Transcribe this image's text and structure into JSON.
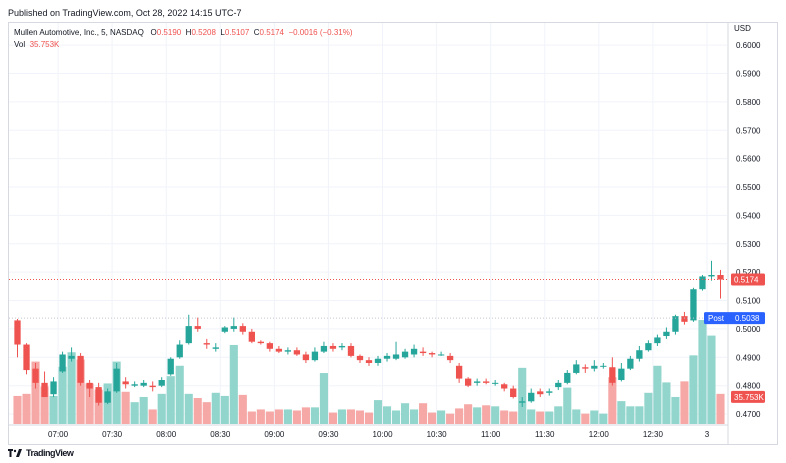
{
  "header": {
    "published": "Published on TradingView.com, Oct 28, 2022 14:15 UTC-7"
  },
  "legend": {
    "symbol": "Mullen Automotive, Inc., 5, NASDAQ",
    "open_key": "O",
    "open": "0.5190",
    "high_key": "H",
    "high": "0.5208",
    "low_key": "L",
    "low": "0.5107",
    "close_key": "C",
    "close": "0.5174",
    "change": "−0.0016 (−0.31%)",
    "vol_key": "Vol",
    "vol": "35.753K"
  },
  "footer": {
    "brand": "TradingView",
    "logo": "tradingview-logo-icon"
  },
  "colors": {
    "up": "#26a69a",
    "down": "#ef5350",
    "up_vol": "#91d5cc",
    "down_vol": "#f5a8a6",
    "post": "#2962ff",
    "grid": "#f0f3fa"
  },
  "chart_data": {
    "type": "candlestick",
    "currency": "USD",
    "y_ticks": [
      "0.6000",
      "0.5900",
      "0.5800",
      "0.5700",
      "0.5600",
      "0.5500",
      "0.5400",
      "0.5300",
      "0.5200",
      "0.5100",
      "0.5000",
      "0.4900",
      "0.4800",
      "0.4700"
    ],
    "ylim": [
      0.4665,
      0.6078
    ],
    "x_ticks": [
      "07:00",
      "07:30",
      "08:00",
      "08:30",
      "09:00",
      "09:30",
      "10:00",
      "10:30",
      "11:00",
      "11:30",
      "12:00",
      "12:30",
      "3"
    ],
    "x_tick_index": [
      4.5,
      10.5,
      16.5,
      22.5,
      28.5,
      34.5,
      40.5,
      46.5,
      52.5,
      58.5,
      64.5,
      70.5,
      76.5
    ],
    "last_price_label": "0.5174",
    "last_price": 0.5174,
    "post_label": "Post",
    "post_value": "0.5038",
    "post_price": 0.5038,
    "volume_label": "35.753K",
    "candles": [
      {
        "o": 0.503,
        "h": 0.5035,
        "l": 0.49,
        "c": 0.4945,
        "v": 0.27
      },
      {
        "o": 0.4945,
        "h": 0.495,
        "l": 0.484,
        "c": 0.4855,
        "v": 0.29
      },
      {
        "o": 0.486,
        "h": 0.488,
        "l": 0.479,
        "c": 0.481,
        "v": 0.6
      },
      {
        "o": 0.481,
        "h": 0.485,
        "l": 0.476,
        "c": 0.476,
        "v": 0.36
      },
      {
        "o": 0.477,
        "h": 0.483,
        "l": 0.476,
        "c": 0.4815,
        "v": 0.27
      },
      {
        "o": 0.485,
        "h": 0.492,
        "l": 0.4845,
        "c": 0.491,
        "v": 0.55
      },
      {
        "o": 0.4895,
        "h": 0.4935,
        "l": 0.4885,
        "c": 0.4905,
        "v": 0.69
      },
      {
        "o": 0.4905,
        "h": 0.4915,
        "l": 0.48,
        "c": 0.481,
        "v": 0.62
      },
      {
        "o": 0.481,
        "h": 0.482,
        "l": 0.476,
        "c": 0.479,
        "v": 0.39
      },
      {
        "o": 0.4795,
        "h": 0.481,
        "l": 0.473,
        "c": 0.474,
        "v": 0.33
      },
      {
        "o": 0.474,
        "h": 0.479,
        "l": 0.4735,
        "c": 0.478,
        "v": 0.39
      },
      {
        "o": 0.478,
        "h": 0.488,
        "l": 0.4775,
        "c": 0.486,
        "v": 0.6
      },
      {
        "o": 0.4815,
        "h": 0.483,
        "l": 0.479,
        "c": 0.4805,
        "v": 0.31
      },
      {
        "o": 0.48,
        "h": 0.4815,
        "l": 0.4795,
        "c": 0.4805,
        "v": 0.21
      },
      {
        "o": 0.48,
        "h": 0.482,
        "l": 0.4795,
        "c": 0.481,
        "v": 0.26
      },
      {
        "o": 0.48,
        "h": 0.4815,
        "l": 0.478,
        "c": 0.4795,
        "v": 0.14
      },
      {
        "o": 0.48,
        "h": 0.483,
        "l": 0.4795,
        "c": 0.482,
        "v": 0.29
      },
      {
        "o": 0.484,
        "h": 0.49,
        "l": 0.4835,
        "c": 0.4895,
        "v": 0.46
      },
      {
        "o": 0.49,
        "h": 0.496,
        "l": 0.4895,
        "c": 0.4945,
        "v": 0.56
      },
      {
        "o": 0.495,
        "h": 0.505,
        "l": 0.4945,
        "c": 0.501,
        "v": 0.29
      },
      {
        "o": 0.501,
        "h": 0.504,
        "l": 0.499,
        "c": 0.5,
        "v": 0.25
      },
      {
        "o": 0.495,
        "h": 0.4965,
        "l": 0.493,
        "c": 0.4945,
        "v": 0.21
      },
      {
        "o": 0.493,
        "h": 0.495,
        "l": 0.492,
        "c": 0.4935,
        "v": 0.3
      },
      {
        "o": 0.499,
        "h": 0.501,
        "l": 0.4985,
        "c": 0.5005,
        "v": 0.27
      },
      {
        "o": 0.5,
        "h": 0.504,
        "l": 0.499,
        "c": 0.501,
        "v": 0.76
      },
      {
        "o": 0.501,
        "h": 0.502,
        "l": 0.498,
        "c": 0.499,
        "v": 0.28
      },
      {
        "o": 0.499,
        "h": 0.5,
        "l": 0.495,
        "c": 0.4955,
        "v": 0.12
      },
      {
        "o": 0.4955,
        "h": 0.496,
        "l": 0.4945,
        "c": 0.495,
        "v": 0.14
      },
      {
        "o": 0.495,
        "h": 0.4955,
        "l": 0.492,
        "c": 0.493,
        "v": 0.12
      },
      {
        "o": 0.493,
        "h": 0.494,
        "l": 0.4915,
        "c": 0.492,
        "v": 0.14
      },
      {
        "o": 0.492,
        "h": 0.4935,
        "l": 0.491,
        "c": 0.4925,
        "v": 0.14
      },
      {
        "o": 0.4925,
        "h": 0.4935,
        "l": 0.4905,
        "c": 0.491,
        "v": 0.13
      },
      {
        "o": 0.491,
        "h": 0.492,
        "l": 0.488,
        "c": 0.489,
        "v": 0.16
      },
      {
        "o": 0.489,
        "h": 0.4935,
        "l": 0.4885,
        "c": 0.492,
        "v": 0.16
      },
      {
        "o": 0.492,
        "h": 0.4955,
        "l": 0.4915,
        "c": 0.494,
        "v": 0.49
      },
      {
        "o": 0.494,
        "h": 0.495,
        "l": 0.492,
        "c": 0.493,
        "v": 0.11
      },
      {
        "o": 0.4935,
        "h": 0.495,
        "l": 0.4925,
        "c": 0.494,
        "v": 0.14
      },
      {
        "o": 0.494,
        "h": 0.495,
        "l": 0.49,
        "c": 0.4905,
        "v": 0.14
      },
      {
        "o": 0.4905,
        "h": 0.491,
        "l": 0.488,
        "c": 0.489,
        "v": 0.13
      },
      {
        "o": 0.489,
        "h": 0.49,
        "l": 0.487,
        "c": 0.488,
        "v": 0.11
      },
      {
        "o": 0.488,
        "h": 0.4905,
        "l": 0.487,
        "c": 0.4895,
        "v": 0.23
      },
      {
        "o": 0.4895,
        "h": 0.4915,
        "l": 0.4885,
        "c": 0.4905,
        "v": 0.17
      },
      {
        "o": 0.4895,
        "h": 0.4955,
        "l": 0.489,
        "c": 0.491,
        "v": 0.13
      },
      {
        "o": 0.49,
        "h": 0.493,
        "l": 0.4895,
        "c": 0.492,
        "v": 0.2
      },
      {
        "o": 0.491,
        "h": 0.4945,
        "l": 0.49,
        "c": 0.493,
        "v": 0.14
      },
      {
        "o": 0.492,
        "h": 0.4935,
        "l": 0.4905,
        "c": 0.4915,
        "v": 0.2
      },
      {
        "o": 0.4915,
        "h": 0.492,
        "l": 0.49,
        "c": 0.491,
        "v": 0.11
      },
      {
        "o": 0.491,
        "h": 0.492,
        "l": 0.4905,
        "c": 0.491,
        "v": 0.13
      },
      {
        "o": 0.4905,
        "h": 0.4915,
        "l": 0.488,
        "c": 0.489,
        "v": 0.1
      },
      {
        "o": 0.487,
        "h": 0.488,
        "l": 0.481,
        "c": 0.4825,
        "v": 0.15
      },
      {
        "o": 0.4825,
        "h": 0.483,
        "l": 0.4795,
        "c": 0.48,
        "v": 0.19
      },
      {
        "o": 0.481,
        "h": 0.4825,
        "l": 0.48,
        "c": 0.4815,
        "v": 0.16
      },
      {
        "o": 0.4815,
        "h": 0.4825,
        "l": 0.4805,
        "c": 0.481,
        "v": 0.18
      },
      {
        "o": 0.481,
        "h": 0.482,
        "l": 0.48,
        "c": 0.481,
        "v": 0.17
      },
      {
        "o": 0.4805,
        "h": 0.481,
        "l": 0.478,
        "c": 0.479,
        "v": 0.13
      },
      {
        "o": 0.479,
        "h": 0.48,
        "l": 0.4755,
        "c": 0.476,
        "v": 0.12
      },
      {
        "o": 0.474,
        "h": 0.476,
        "l": 0.4725,
        "c": 0.4745,
        "v": 0.54
      },
      {
        "o": 0.4745,
        "h": 0.479,
        "l": 0.474,
        "c": 0.4775,
        "v": 0.14
      },
      {
        "o": 0.478,
        "h": 0.479,
        "l": 0.476,
        "c": 0.477,
        "v": 0.12
      },
      {
        "o": 0.4775,
        "h": 0.479,
        "l": 0.4765,
        "c": 0.478,
        "v": 0.12
      },
      {
        "o": 0.4795,
        "h": 0.482,
        "l": 0.4785,
        "c": 0.481,
        "v": 0.17
      },
      {
        "o": 0.481,
        "h": 0.4855,
        "l": 0.4805,
        "c": 0.4845,
        "v": 0.35
      },
      {
        "o": 0.4845,
        "h": 0.489,
        "l": 0.484,
        "c": 0.4875,
        "v": 0.14
      },
      {
        "o": 0.4865,
        "h": 0.4875,
        "l": 0.4845,
        "c": 0.486,
        "v": 0.1
      },
      {
        "o": 0.486,
        "h": 0.489,
        "l": 0.485,
        "c": 0.487,
        "v": 0.13
      },
      {
        "o": 0.487,
        "h": 0.488,
        "l": 0.486,
        "c": 0.487,
        "v": 0.1
      },
      {
        "o": 0.4865,
        "h": 0.49,
        "l": 0.48,
        "c": 0.481,
        "v": 0.45
      },
      {
        "o": 0.482,
        "h": 0.488,
        "l": 0.4815,
        "c": 0.486,
        "v": 0.22
      },
      {
        "o": 0.486,
        "h": 0.4905,
        "l": 0.4855,
        "c": 0.4895,
        "v": 0.17
      },
      {
        "o": 0.4895,
        "h": 0.494,
        "l": 0.4885,
        "c": 0.4925,
        "v": 0.17
      },
      {
        "o": 0.4925,
        "h": 0.496,
        "l": 0.492,
        "c": 0.495,
        "v": 0.3
      },
      {
        "o": 0.495,
        "h": 0.498,
        "l": 0.494,
        "c": 0.497,
        "v": 0.56
      },
      {
        "o": 0.4975,
        "h": 0.5005,
        "l": 0.4965,
        "c": 0.499,
        "v": 0.4
      },
      {
        "o": 0.499,
        "h": 0.505,
        "l": 0.498,
        "c": 0.5045,
        "v": 0.26
      },
      {
        "o": 0.5045,
        "h": 0.506,
        "l": 0.5015,
        "c": 0.5025,
        "v": 0.41
      },
      {
        "o": 0.503,
        "h": 0.5145,
        "l": 0.5025,
        "c": 0.514,
        "v": 0.66
      },
      {
        "o": 0.514,
        "h": 0.519,
        "l": 0.5135,
        "c": 0.5185,
        "v": 1.0
      },
      {
        "o": 0.5185,
        "h": 0.524,
        "l": 0.517,
        "c": 0.519,
        "v": 0.85
      },
      {
        "o": 0.519,
        "h": 0.5208,
        "l": 0.5107,
        "c": 0.5174,
        "v": 0.29
      }
    ]
  }
}
